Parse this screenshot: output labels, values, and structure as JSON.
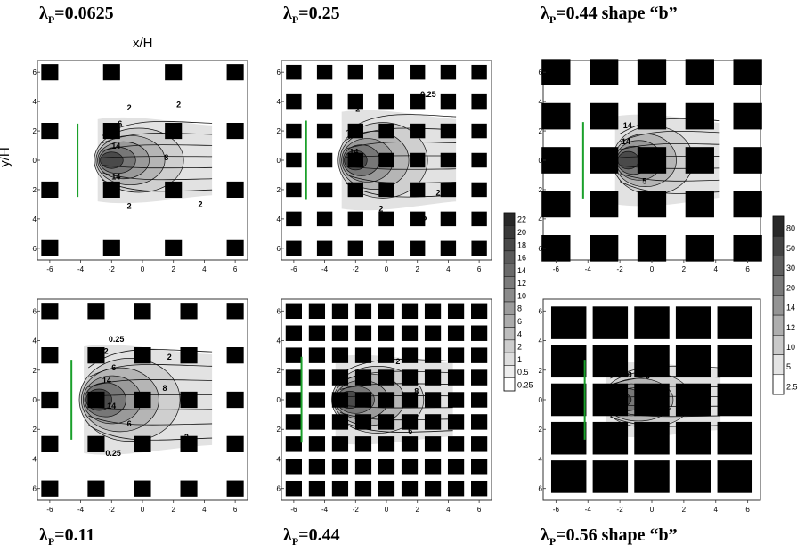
{
  "figure": {
    "axis_x_label": "x/H",
    "axis_y_label": "y/H",
    "panels": [
      {
        "id": "p1",
        "lambda_symbol": "λ",
        "lambda_sub": "P",
        "lambda_value": "=0.0625",
        "shape_note": "",
        "contour_labels": [
          "2",
          "2",
          "6",
          "14",
          "8",
          "14",
          "2",
          "2"
        ]
      },
      {
        "id": "p2",
        "lambda_symbol": "λ",
        "lambda_sub": "P",
        "lambda_value": "=0.25",
        "shape_note": "",
        "contour_labels": [
          "0.25",
          "2",
          "6",
          "14",
          "6",
          "2",
          "2",
          "0.25"
        ]
      },
      {
        "id": "p3",
        "lambda_symbol": "λ",
        "lambda_sub": "P",
        "lambda_value": "=0.44 shape “b”",
        "shape_note": "",
        "contour_labels": [
          "14",
          "14",
          "5",
          "5"
        ]
      },
      {
        "id": "p4",
        "lambda_symbol": "λ",
        "lambda_sub": "P",
        "lambda_value": "=0.11",
        "shape_note": "",
        "contour_labels": [
          "0.25",
          "2",
          "2",
          "6",
          "14",
          "8",
          "14",
          "6",
          "2",
          "0.25"
        ]
      },
      {
        "id": "p5",
        "lambda_symbol": "λ",
        "lambda_sub": "P",
        "lambda_value": "=0.44",
        "shape_note": "",
        "contour_labels": [
          "6",
          "2",
          "8",
          "6"
        ]
      },
      {
        "id": "p6",
        "lambda_symbol": "λ",
        "lambda_sub": "P",
        "lambda_value": "=0.56 shape “b”",
        "shape_note": "",
        "contour_labels": [
          "50",
          "5",
          "12"
        ]
      }
    ],
    "x_ticks": [
      "-6",
      "-4",
      "-2",
      "0",
      "2",
      "4",
      "6"
    ],
    "y_ticks": [
      "6",
      "4",
      "2",
      "0",
      "-2",
      "-4",
      "-6"
    ],
    "colorbar_1": {
      "levels": [
        "22",
        "20",
        "18",
        "16",
        "14",
        "12",
        "10",
        "8",
        "6",
        "4",
        "2",
        "1",
        "0.5",
        "0.25"
      ]
    },
    "colorbar_2": {
      "levels": [
        "80",
        "50",
        "30",
        "20",
        "14",
        "12",
        "10",
        "5",
        "2.5"
      ]
    }
  }
}
